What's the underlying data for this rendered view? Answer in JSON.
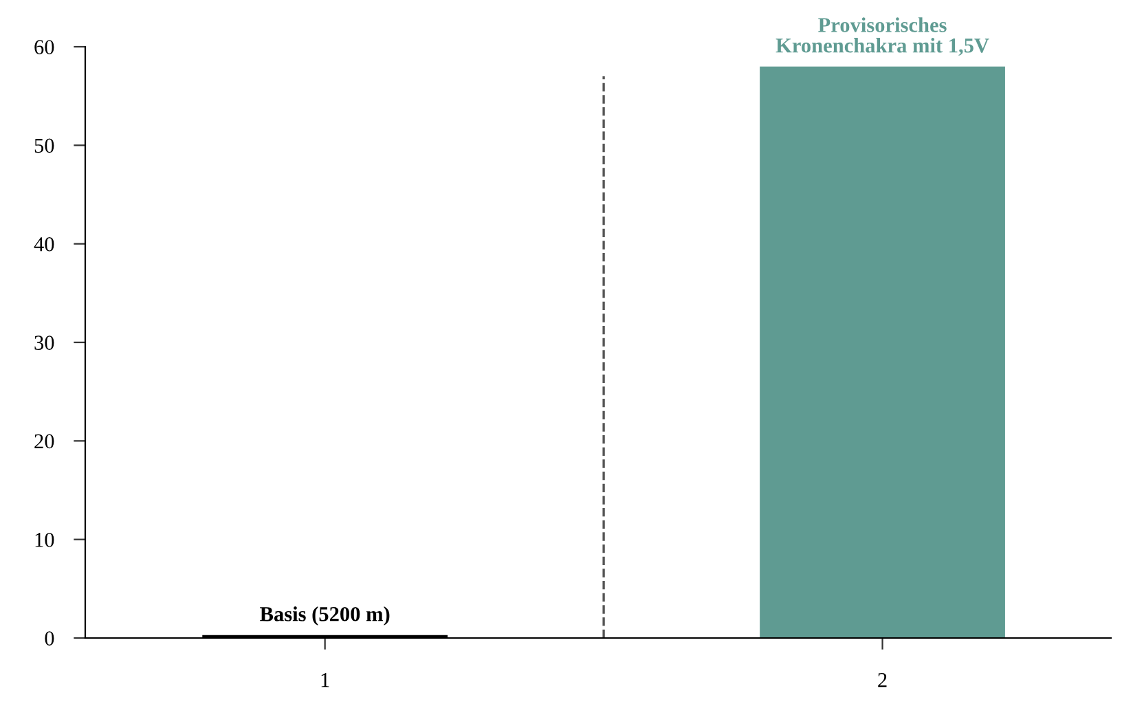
{
  "chart_data": {
    "type": "bar",
    "x": [
      1,
      2
    ],
    "values": [
      0.3,
      58
    ],
    "colors": [
      "#000000",
      "#5f9b92"
    ],
    "xlim": [
      0.57,
      2.41
    ],
    "xticks": [
      1,
      2
    ],
    "ylim": [
      0,
      60
    ],
    "yticks": [
      0,
      10,
      20,
      30,
      40,
      50,
      60
    ],
    "ref_lines": [
      {
        "axis": "x",
        "value": 1.5,
        "color": "#555555",
        "line_style": "dashed"
      }
    ],
    "annotations": [
      {
        "text": "Basis (5200 m)",
        "x": 1,
        "y": 0.3
      },
      {
        "text": "Provisorisches\nKronenchakra mit 1,5V",
        "x": 2,
        "y": 58
      }
    ],
    "grid": false,
    "legend": false
  }
}
